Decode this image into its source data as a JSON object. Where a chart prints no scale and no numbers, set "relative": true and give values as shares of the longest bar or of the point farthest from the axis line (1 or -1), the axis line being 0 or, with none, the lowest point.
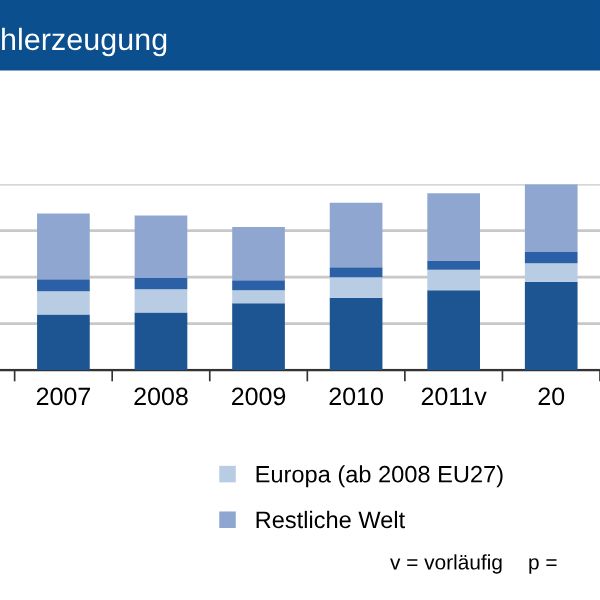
{
  "chart_data": {
    "type": "bar",
    "title": "hlerzeugung",
    "stacked": true,
    "relative": true,
    "grid": "y",
    "legend": "bottom",
    "categories": [
      "2007",
      "2008",
      "2009",
      "2010",
      "2011v",
      "20"
    ],
    "series": [
      {
        "color": "#1c5592",
        "values": [
          0.3,
          0.31,
          0.36,
          0.39,
          0.43,
          0.475
        ]
      },
      {
        "name": "Europa (ab 2008 EU27)",
        "color": "#b8cce4",
        "values": [
          0.125,
          0.125,
          0.07,
          0.11,
          0.11,
          0.1
        ]
      },
      {
        "color": "#2b60a6",
        "values": [
          0.064,
          0.061,
          0.054,
          0.054,
          0.05,
          0.061
        ]
      },
      {
        "name": "Restliche Welt",
        "color": "#8fa7d0",
        "values": [
          0.354,
          0.336,
          0.286,
          0.346,
          0.361,
          0.364
        ]
      }
    ],
    "annotations": [
      "v = vorläufig",
      "p ="
    ]
  }
}
